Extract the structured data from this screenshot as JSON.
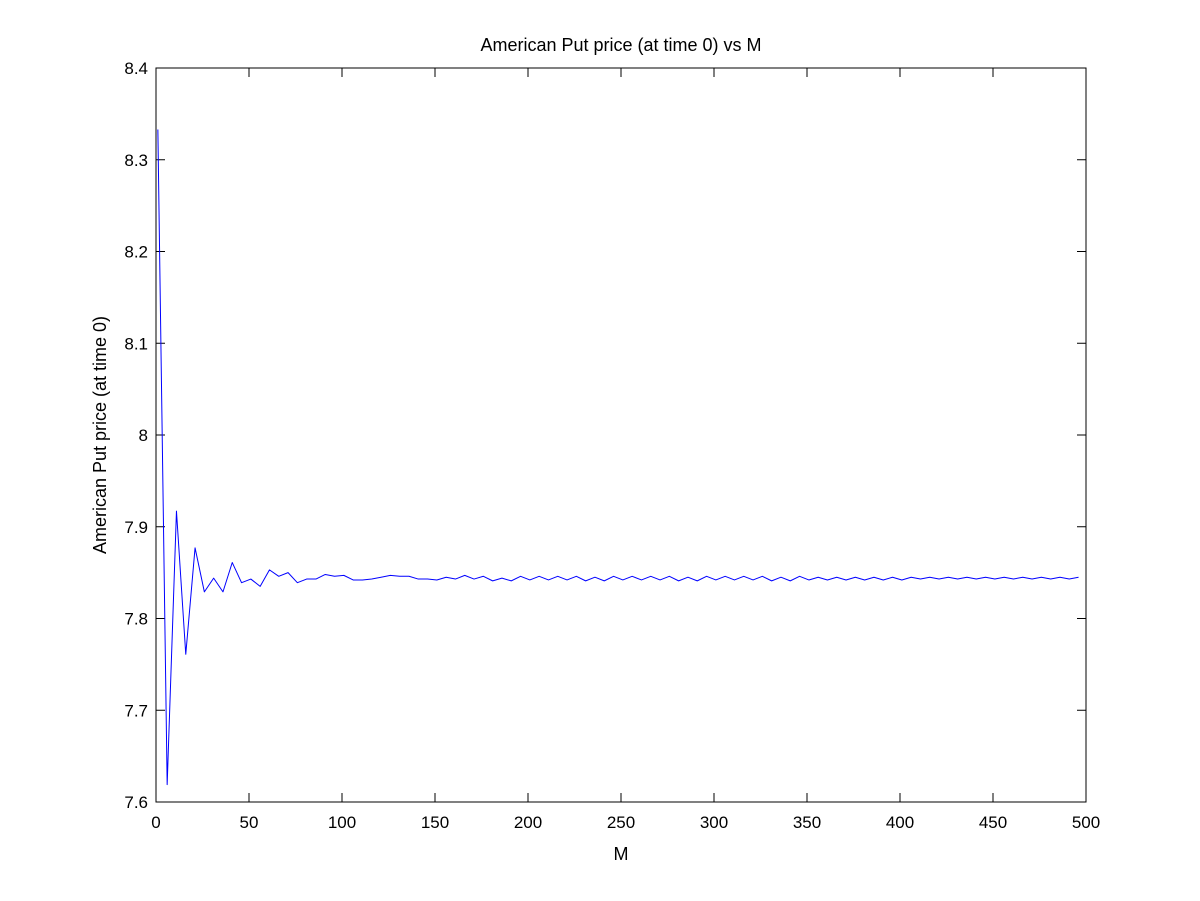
{
  "chart_data": {
    "type": "line",
    "title": "American Put price (at time 0) vs M",
    "xlabel": "M",
    "ylabel": "American Put price (at time 0)",
    "xlim": [
      0,
      500
    ],
    "ylim": [
      7.6,
      8.4
    ],
    "xticks": [
      0,
      50,
      100,
      150,
      200,
      250,
      300,
      350,
      400,
      450,
      500
    ],
    "yticks": [
      7.6,
      7.7,
      7.8,
      7.9,
      8.0,
      8.1,
      8.2,
      8.3,
      8.4
    ],
    "xtick_labels": [
      "0",
      "50",
      "100",
      "150",
      "200",
      "250",
      "300",
      "350",
      "400",
      "450",
      "500"
    ],
    "ytick_labels": [
      "7.6",
      "7.7",
      "7.8",
      "7.9",
      "8",
      "8.1",
      "8.2",
      "8.3",
      "8.4"
    ],
    "grid": false,
    "series": [
      {
        "name": "American Put price",
        "color": "#0000ff",
        "x": [
          1,
          6,
          11,
          16,
          21,
          26,
          31,
          36,
          41,
          46,
          51,
          56,
          61,
          66,
          71,
          76,
          81,
          86,
          91,
          96,
          101,
          106,
          111,
          116,
          121,
          126,
          131,
          136,
          141,
          146,
          151,
          156,
          161,
          166,
          171,
          176,
          181,
          186,
          191,
          196,
          201,
          206,
          211,
          216,
          221,
          226,
          231,
          236,
          241,
          246,
          251,
          256,
          261,
          266,
          271,
          276,
          281,
          286,
          291,
          296,
          301,
          306,
          311,
          316,
          321,
          326,
          331,
          336,
          341,
          346,
          351,
          356,
          361,
          366,
          371,
          376,
          381,
          386,
          391,
          396,
          401,
          406,
          411,
          416,
          421,
          426,
          431,
          436,
          441,
          446,
          451,
          456,
          461,
          466,
          471,
          476,
          481,
          486,
          491,
          496
        ],
        "values": [
          8.333,
          7.619,
          7.917,
          7.761,
          7.877,
          7.829,
          7.844,
          7.829,
          7.861,
          7.839,
          7.843,
          7.835,
          7.853,
          7.846,
          7.85,
          7.839,
          7.843,
          7.843,
          7.848,
          7.846,
          7.847,
          7.842,
          7.842,
          7.843,
          7.845,
          7.847,
          7.846,
          7.846,
          7.843,
          7.843,
          7.842,
          7.845,
          7.843,
          7.847,
          7.843,
          7.846,
          7.841,
          7.844,
          7.841,
          7.846,
          7.842,
          7.846,
          7.842,
          7.846,
          7.842,
          7.846,
          7.841,
          7.845,
          7.841,
          7.846,
          7.842,
          7.846,
          7.842,
          7.846,
          7.842,
          7.846,
          7.841,
          7.845,
          7.841,
          7.846,
          7.842,
          7.846,
          7.842,
          7.846,
          7.842,
          7.846,
          7.841,
          7.845,
          7.841,
          7.846,
          7.842,
          7.845,
          7.842,
          7.845,
          7.842,
          7.845,
          7.842,
          7.845,
          7.842,
          7.845,
          7.842,
          7.845,
          7.843,
          7.845,
          7.843,
          7.845,
          7.843,
          7.845,
          7.843,
          7.845,
          7.843,
          7.845,
          7.843,
          7.845,
          7.843,
          7.845,
          7.843,
          7.845,
          7.843,
          7.845
        ]
      }
    ]
  }
}
